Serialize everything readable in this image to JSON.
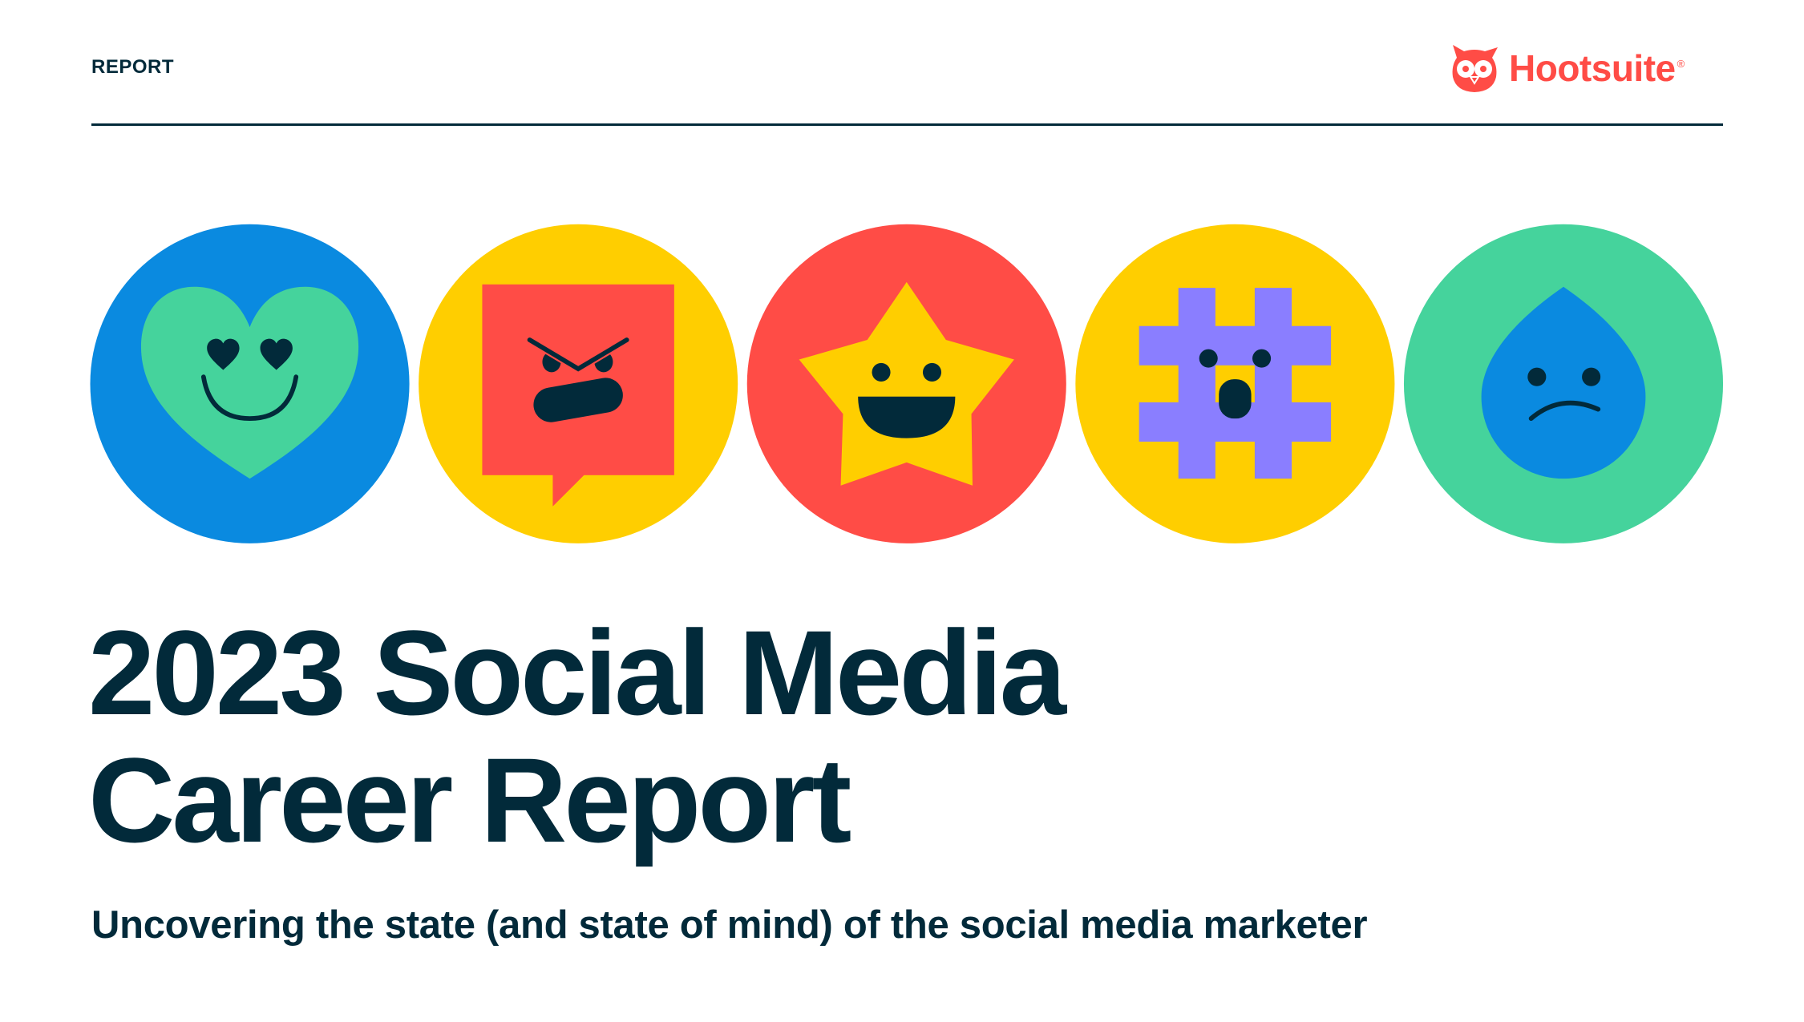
{
  "header": {
    "label": "REPORT",
    "brand": "Hootsuite",
    "brand_mark": "®"
  },
  "icons": [
    {
      "name": "heart-eyes-face-icon",
      "circle": "#0A8AE0",
      "shape": "#45D39C"
    },
    {
      "name": "angry-speech-bubble-icon",
      "circle": "#FFCE00",
      "shape": "#FF4C46"
    },
    {
      "name": "happy-star-icon",
      "circle": "#FF4C46",
      "shape": "#FFCE00"
    },
    {
      "name": "surprised-hashtag-icon",
      "circle": "#FFCE00",
      "shape": "#8A7EFF"
    },
    {
      "name": "sad-droplet-icon",
      "circle": "#45D39C",
      "shape": "#0A8AE0"
    }
  ],
  "title": {
    "line1": "2023 Social Media",
    "line2": "Career Report"
  },
  "subtitle": "Uncovering the state (and state of mind) of the social media marketer",
  "colors": {
    "text": "#022A3A",
    "brand": "#FF4C46"
  }
}
